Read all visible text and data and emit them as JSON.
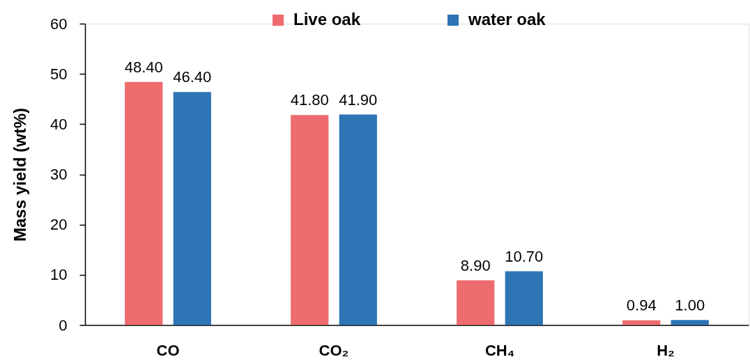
{
  "chart_data": {
    "type": "bar",
    "ylabel": "Mass yield (wt%)",
    "categories": [
      "CO",
      "CO₂",
      "CH₄",
      "H₂"
    ],
    "series": [
      {
        "name": "Live oak",
        "color": "#ee6b6e",
        "values": [
          48.4,
          41.8,
          8.9,
          0.94
        ],
        "value_labels": [
          "48.40",
          "41.80",
          "8.90",
          "0.94"
        ]
      },
      {
        "name": "water oak",
        "color": "#2e75b6",
        "values": [
          46.4,
          41.9,
          10.7,
          1.0
        ],
        "value_labels": [
          "46.40",
          "41.90",
          "10.70",
          "1.00"
        ]
      }
    ],
    "ylim": [
      0,
      60
    ],
    "yticks": [
      0,
      10,
      20,
      30,
      40,
      50,
      60
    ],
    "grid": false,
    "legend": "top"
  }
}
